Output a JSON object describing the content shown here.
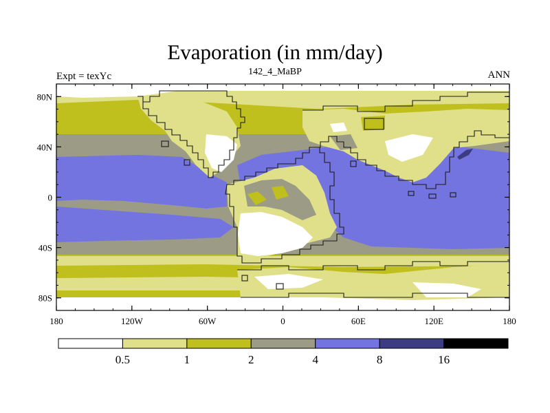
{
  "title": "Evaporation (in mm/day)",
  "left_label": "Expt = texYc",
  "center_label": "142_4_MaBP",
  "right_label": "ANN",
  "colors": {
    "c0": "#ffffff",
    "c1": "#e0e08a",
    "c2": "#bfbf1e",
    "c3": "#9b9b86",
    "c4": "#7474e0",
    "c5": "#3c3c82",
    "c6": "#000000",
    "coast": "#1a1a1a"
  },
  "chart_data": {
    "type": "heatmap",
    "title": "Evaporation (in mm/day)",
    "projection": "cylindrical equidistant",
    "x_range": [
      -180,
      180
    ],
    "y_range": [
      -90,
      90
    ],
    "x_ticks": [
      "180",
      "120W",
      "60W",
      "0",
      "60E",
      "120E",
      "180"
    ],
    "y_ticks": [
      "80N",
      "40N",
      "0",
      "40S",
      "80S"
    ],
    "colorbar_levels": [
      "0.5",
      "1",
      "2",
      "4",
      "8",
      "16"
    ],
    "colorbar_bins": 7
  }
}
